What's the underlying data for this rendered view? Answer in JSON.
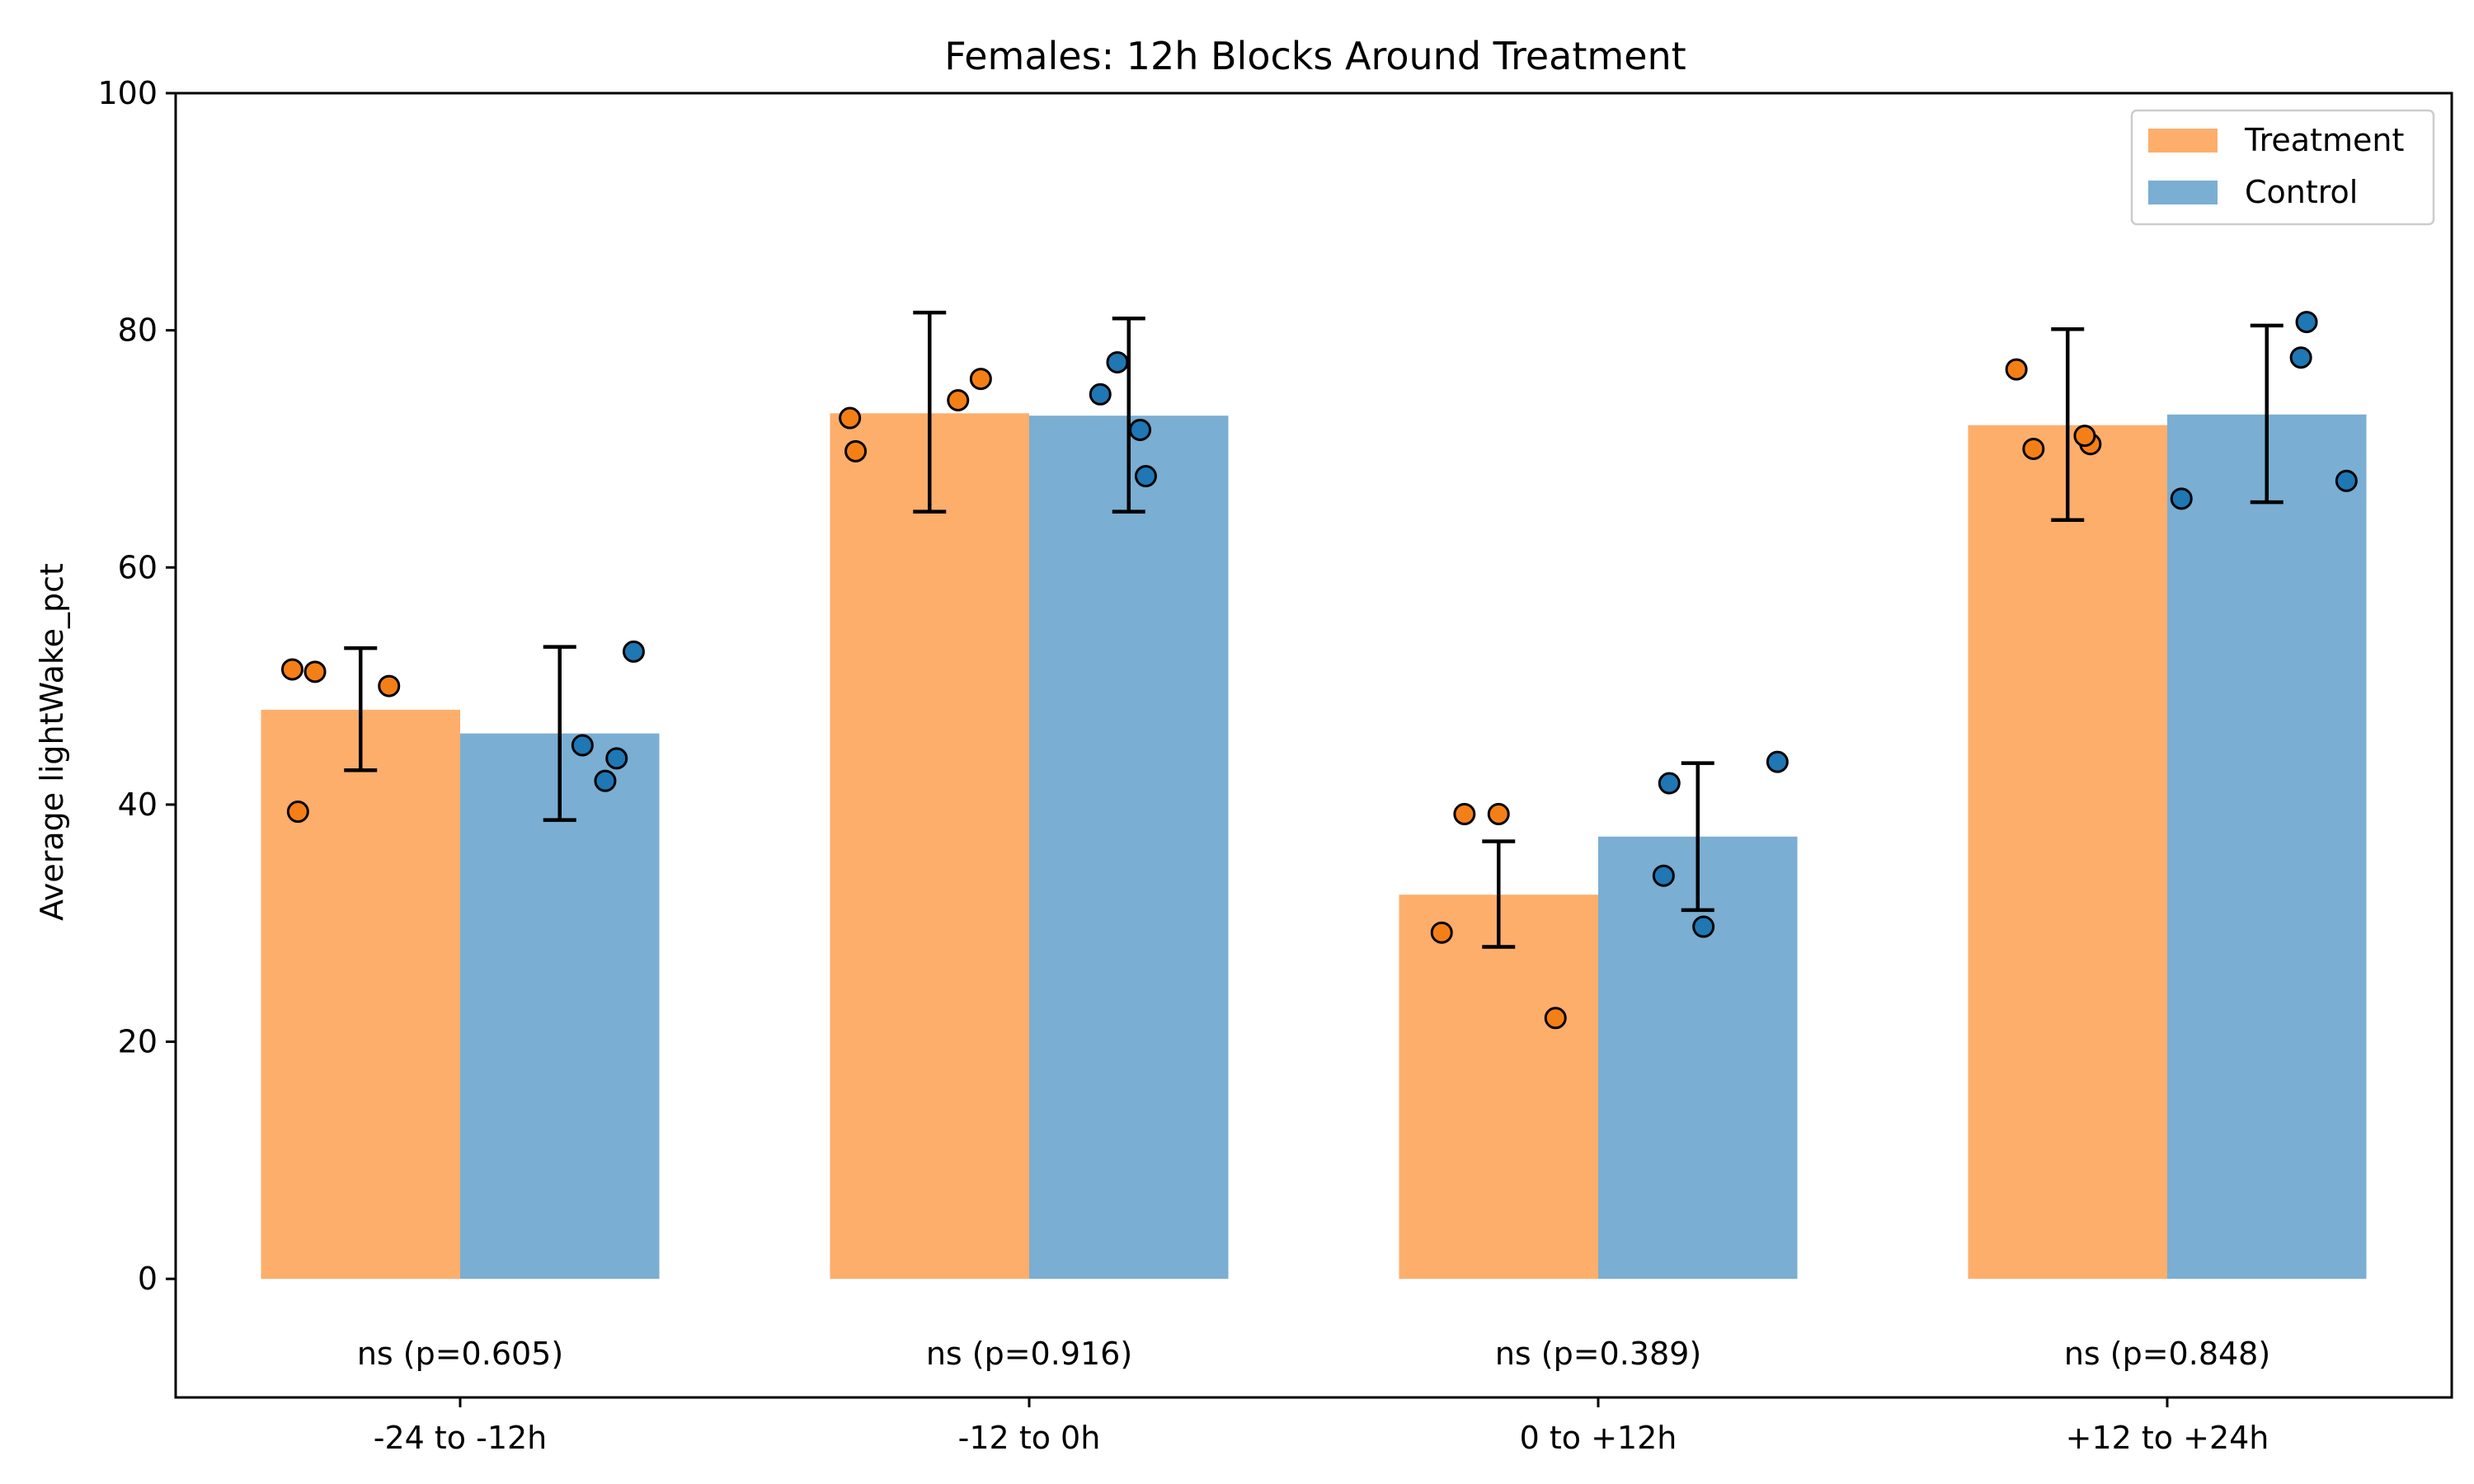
{
  "chart_data": {
    "type": "bar",
    "title": "Females: 12h Blocks Around Treatment",
    "xlabel": "",
    "ylabel": "Average lightWake_pct",
    "ylim": [
      -10,
      100
    ],
    "yticks": [
      0,
      20,
      40,
      60,
      80,
      100
    ],
    "grid": false,
    "legend_position": "top-right",
    "categories": [
      "-24 to -12h",
      "-12 to 0h",
      "0 to +12h",
      "+12 to +24h"
    ],
    "series": [
      {
        "name": "Treatment",
        "bar_color": "#fdae6b",
        "point_color": "#f57f17",
        "values": [
          48.0,
          73.0,
          32.4,
          72.0
        ],
        "error_low": [
          42.9,
          64.7,
          28.0,
          64.0
        ],
        "error_high": [
          53.2,
          81.5,
          36.9,
          80.1
        ],
        "points": [
          [
            51.4,
            51.2,
            50.0,
            39.4
          ],
          [
            72.6,
            69.8,
            74.1,
            75.9
          ],
          [
            39.2,
            39.2,
            29.2,
            22.0
          ],
          [
            76.7,
            70.0,
            70.4,
            71.1
          ]
        ],
        "point_offsets": [
          [
            -0.12,
            -0.08,
            0.05,
            -0.11
          ],
          [
            -0.14,
            -0.13,
            0.05,
            0.09
          ],
          [
            -0.06,
            0.0,
            -0.1,
            0.1
          ],
          [
            -0.09,
            -0.06,
            0.04,
            0.03
          ]
        ]
      },
      {
        "name": "Control",
        "bar_color": "#7aaed2",
        "point_color": "#1f77b4",
        "values": [
          46.0,
          72.8,
          37.3,
          72.9
        ],
        "error_low": [
          38.7,
          64.7,
          31.1,
          65.5
        ],
        "error_high": [
          53.3,
          81.0,
          43.5,
          80.4
        ],
        "points": [
          [
            52.9,
            45.0,
            43.9,
            42.0
          ],
          [
            77.3,
            74.6,
            71.6,
            67.7
          ],
          [
            43.6,
            41.8,
            34.0,
            29.7
          ],
          [
            80.7,
            77.7,
            67.3,
            65.8
          ]
        ],
        "point_offsets": [
          [
            0.13,
            0.04,
            0.1,
            0.08
          ],
          [
            -0.02,
            -0.05,
            0.02,
            0.03
          ],
          [
            0.14,
            -0.05,
            -0.06,
            0.01
          ],
          [
            0.07,
            0.06,
            0.14,
            -0.15
          ]
        ]
      }
    ],
    "annotations": [
      "ns (p=0.605)",
      "ns (p=0.916)",
      "ns (p=0.389)",
      "ns (p=0.848)"
    ],
    "annotation_y": -6.3
  }
}
